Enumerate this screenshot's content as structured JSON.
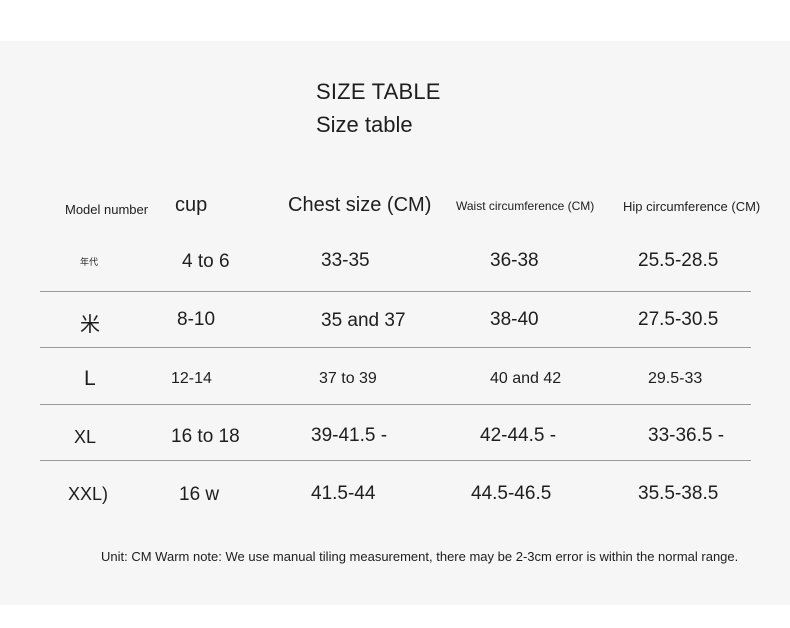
{
  "title": "SIZE TABLE",
  "subtitle": "Size table",
  "headers": {
    "model": "Model number",
    "cup": "cup",
    "chest": "Chest size (CM)",
    "waist": "Waist circumference (CM)",
    "hip": "Hip circumference (CM)"
  },
  "rows": [
    {
      "model": "年代",
      "cup": "4 to 6",
      "chest": "33-35",
      "waist": "36-38",
      "hip": "25.5-28.5"
    },
    {
      "model": "米",
      "cup": "8-10",
      "chest": "35 and 37",
      "waist": "38-40",
      "hip": "27.5-30.5"
    },
    {
      "model": "L",
      "cup": "12-14",
      "chest": "37 to 39",
      "waist": "40 and 42",
      "hip": "29.5-33"
    },
    {
      "model": "XL",
      "cup": "16 to 18",
      "chest": "39-41.5 -",
      "waist": "42-44.5 -",
      "hip": "33-36.5 -"
    },
    {
      "model": "XXL)",
      "cup": "16 w",
      "chest": "41.5-44",
      "waist": "44.5-46.5",
      "hip": "35.5-38.5"
    }
  ],
  "note": "Unit: CM Warm note: We use manual tiling measurement, there may be 2-3cm error is within the normal range."
}
